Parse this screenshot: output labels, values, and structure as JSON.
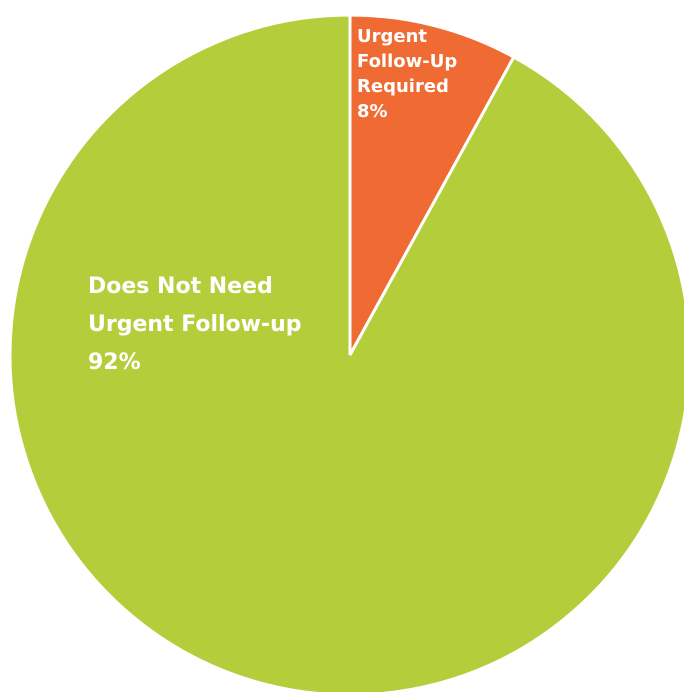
{
  "chart_data": {
    "type": "pie",
    "title": "",
    "start_angle_deg": 0,
    "direction": "clockwise",
    "slices": [
      {
        "label_lines": [
          "Urgent",
          "Follow-Up",
          "Required"
        ],
        "value_label": "8%",
        "value": 8,
        "color": "#ef6b33"
      },
      {
        "label_lines": [
          "Does Not Need",
          "Urgent Follow-up"
        ],
        "value_label": "92%",
        "value": 92,
        "color": "#b4cd3b"
      }
    ],
    "legend": "none",
    "slice_separator_color": "#ffffff"
  }
}
